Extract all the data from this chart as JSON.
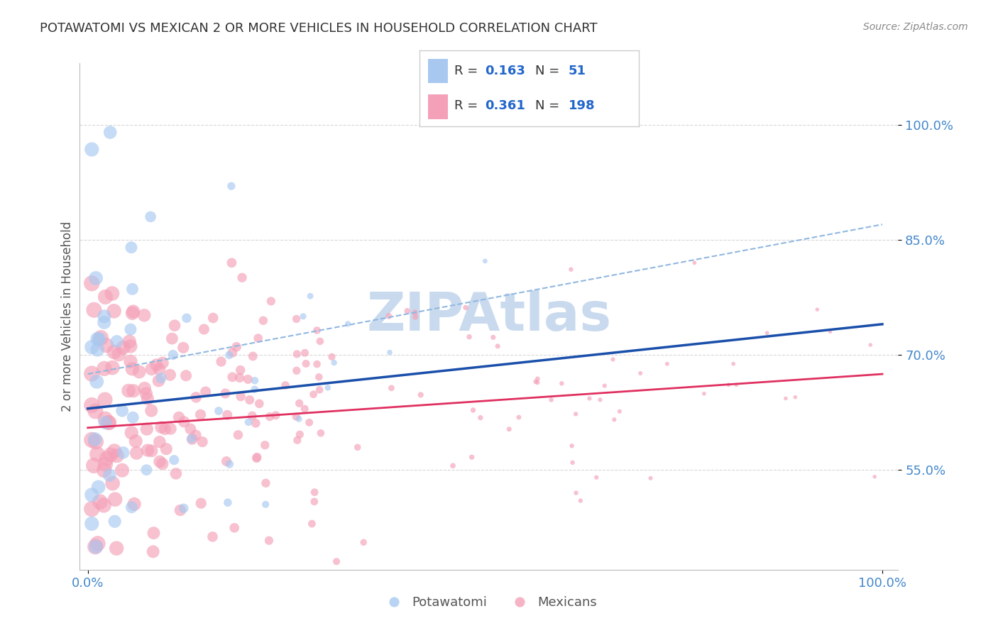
{
  "title": "POTAWATOMI VS MEXICAN 2 OR MORE VEHICLES IN HOUSEHOLD CORRELATION CHART",
  "source": "Source: ZipAtlas.com",
  "ylabel": "2 or more Vehicles in Household",
  "blue_color": "#a8c8f0",
  "pink_color": "#f4a0b8",
  "blue_line_color": "#1a4faa",
  "pink_line_color": "#e03060",
  "dashed_line_color": "#90b8e0",
  "watermark_color": "#c0d4ec",
  "grid_color": "#d8d8d8",
  "background_color": "#ffffff",
  "title_color": "#333333",
  "source_color": "#888888",
  "axis_label_color": "#555555",
  "tick_label_color": "#4488cc",
  "legend_R_N_color": "#2266cc",
  "legend_border_color": "#cccccc",
  "ytick_values": [
    0.55,
    0.7,
    0.85,
    1.0
  ],
  "ytick_labels": [
    "55.0%",
    "70.0%",
    "85.0%",
    "100.0%"
  ],
  "xtick_values": [
    0.0,
    1.0
  ],
  "xtick_labels": [
    "0.0%",
    "100.0%"
  ],
  "xlim": [
    -0.01,
    1.02
  ],
  "ylim": [
    0.42,
    1.08
  ],
  "blue_line_x0": 0.0,
  "blue_line_y0": 0.63,
  "blue_line_x1": 1.0,
  "blue_line_y1": 0.74,
  "pink_line_x0": 0.0,
  "pink_line_y0": 0.605,
  "pink_line_x1": 1.0,
  "pink_line_y1": 0.675,
  "dash_line_x0": 0.0,
  "dash_line_y0": 0.675,
  "dash_line_x1": 1.0,
  "dash_line_y1": 0.87,
  "potawatomi_R": "0.163",
  "potawatomi_N": "51",
  "mexicans_R": "0.361",
  "mexicans_N": "198",
  "watermark_text": "ZIPAtlas"
}
